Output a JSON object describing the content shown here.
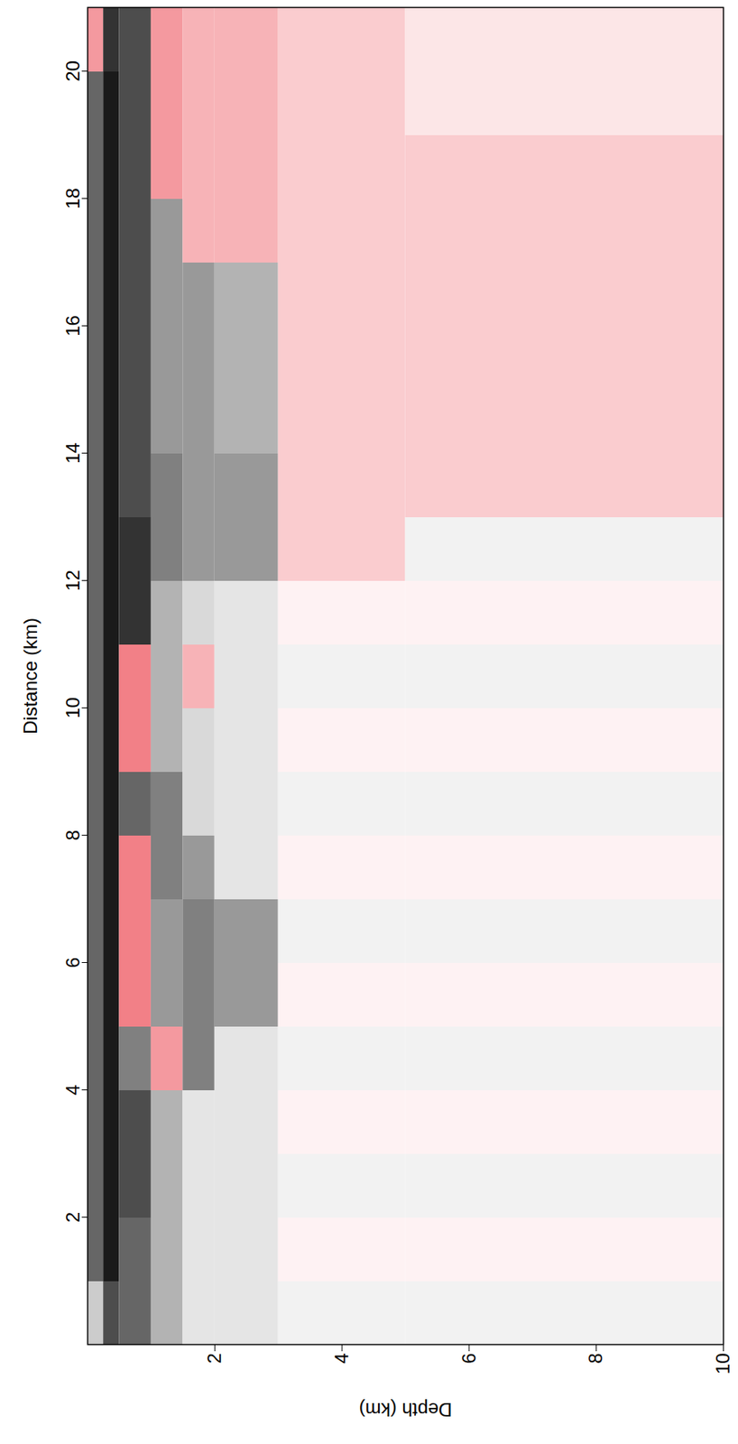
{
  "chart_data": {
    "type": "heatmap",
    "x_label": "Distance (km)",
    "y_label": "Depth (km)",
    "xlim": [
      0,
      21
    ],
    "xticks": [
      2,
      4,
      6,
      8,
      10,
      12,
      14,
      16,
      18,
      20
    ],
    "ylim": [
      0,
      10
    ],
    "yticks": [
      2,
      4,
      6,
      8,
      10
    ],
    "grid": false,
    "amplitude": {
      "distance_edges": [
        0,
        1,
        2,
        3,
        4,
        5,
        6,
        7,
        8,
        9,
        10,
        11,
        12,
        13,
        14,
        15,
        16,
        17,
        18,
        19,
        20,
        21
      ],
      "depth_edges": [
        0,
        0.25,
        0.5,
        1,
        1.5,
        2,
        3,
        5,
        10
      ],
      "values": [
        [
          0.2,
          0.6,
          0.6,
          0.6,
          0.6,
          0.6,
          0.6,
          0.6,
          0.6,
          0.6,
          0.6,
          0.6,
          0.6,
          0.6,
          0.6,
          0.6,
          0.6,
          0.6,
          0.6,
          0.6,
          -0.4
        ],
        [
          0.7,
          0.9,
          0.9,
          0.9,
          0.9,
          0.9,
          0.9,
          0.9,
          0.9,
          0.9,
          0.9,
          0.9,
          0.9,
          0.9,
          0.9,
          0.9,
          0.9,
          0.9,
          0.9,
          0.9,
          0.8
        ],
        [
          0.6,
          0.6,
          0.7,
          0.7,
          0.5,
          -0.5,
          -0.5,
          -0.5,
          0.6,
          -0.5,
          -0.5,
          0.8,
          0.8,
          0.7,
          0.7,
          0.7,
          0.7,
          0.7,
          0.7,
          0.7,
          0.7
        ],
        [
          0.3,
          0.3,
          0.3,
          0.3,
          -0.4,
          0.4,
          0.4,
          0.5,
          0.5,
          0.3,
          0.3,
          0.3,
          0.5,
          0.5,
          0.4,
          0.4,
          0.4,
          0.4,
          -0.4,
          -0.4,
          -0.4
        ],
        [
          0.1,
          0.1,
          0.1,
          0.1,
          0.5,
          0.5,
          0.5,
          0.4,
          0.15,
          0.15,
          -0.3,
          0.15,
          0.4,
          0.4,
          0.4,
          0.4,
          0.4,
          -0.3,
          -0.3,
          -0.3,
          -0.3
        ],
        [
          0.1,
          0.1,
          0.1,
          0.1,
          0.1,
          0.4,
          0.4,
          0.1,
          0.1,
          0.1,
          0.1,
          0.1,
          0.4,
          0.4,
          0.3,
          0.3,
          0.3,
          -0.3,
          -0.3,
          -0.3,
          -0.3
        ],
        [
          0.05,
          -0.05,
          0.05,
          -0.05,
          0.05,
          -0.05,
          0.05,
          -0.05,
          0.05,
          -0.05,
          0.05,
          -0.05,
          -0.2,
          -0.2,
          -0.2,
          -0.2,
          -0.2,
          -0.2,
          -0.2,
          -0.2,
          -0.2
        ],
        [
          0.05,
          -0.05,
          0.05,
          -0.05,
          0.05,
          -0.05,
          0.05,
          -0.05,
          0.05,
          -0.05,
          0.05,
          -0.05,
          0.05,
          -0.2,
          -0.2,
          -0.2,
          -0.2,
          -0.2,
          -0.2,
          -0.1,
          -0.1
        ]
      ],
      "clim": [
        -1,
        1
      ],
      "colors": [
        "#e4000f",
        "#ffffff",
        "#000000"
      ]
    }
  }
}
